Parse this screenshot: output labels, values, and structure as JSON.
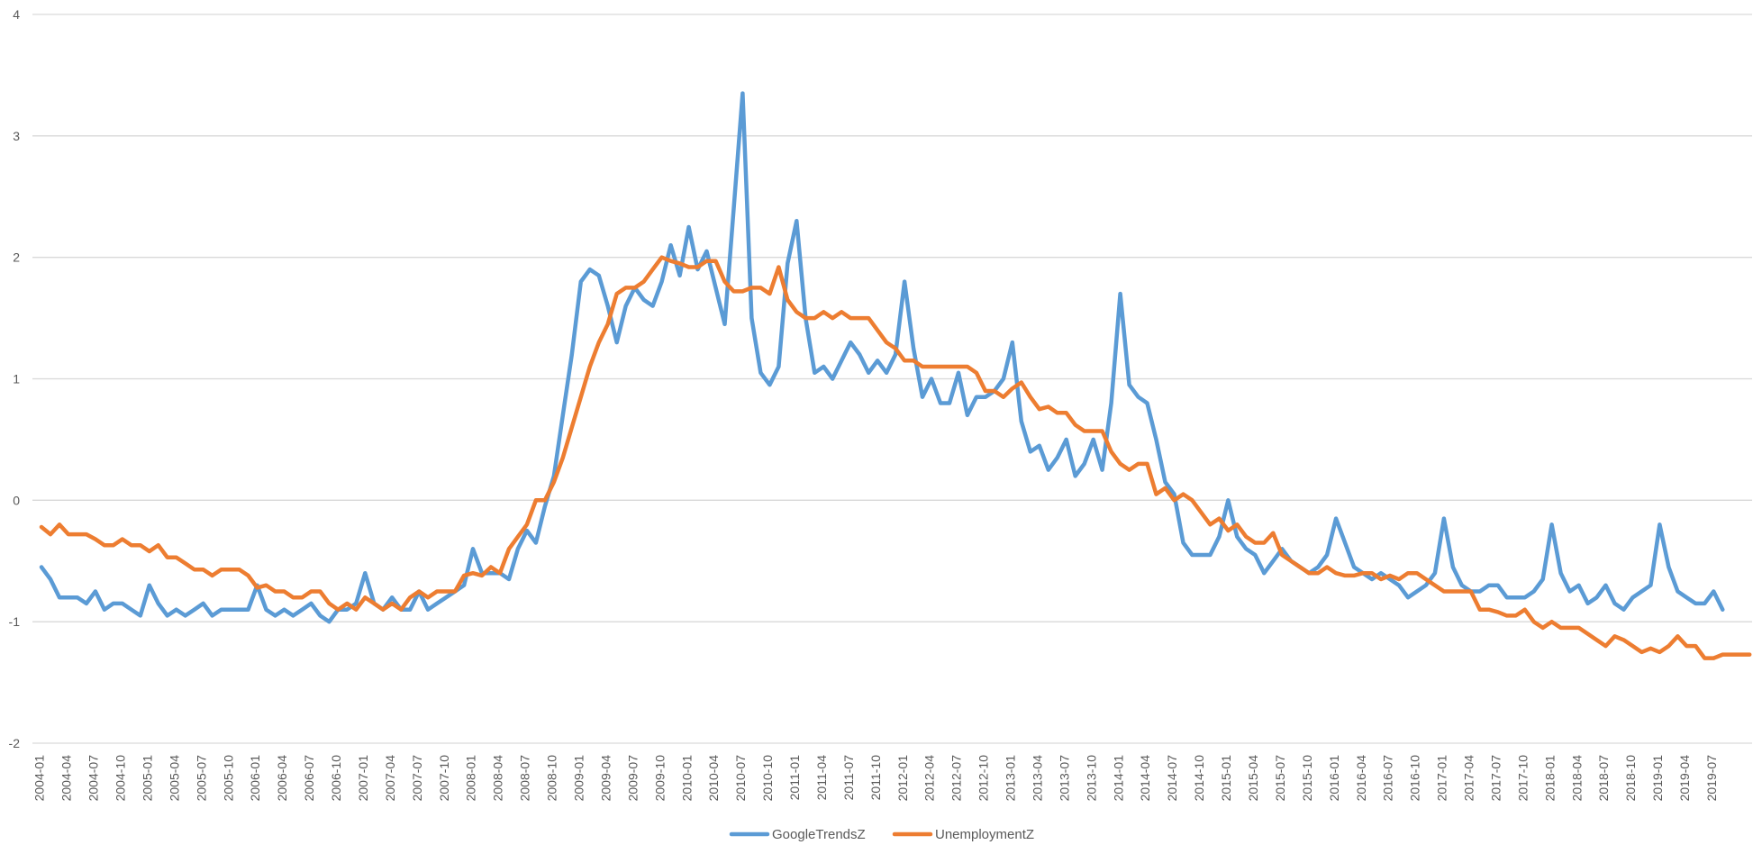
{
  "chart_data": {
    "type": "line",
    "title": "",
    "xlabel": "",
    "ylabel": "",
    "ylim": [
      -2,
      4
    ],
    "yticks": [
      -2,
      -1,
      0,
      1,
      2,
      3,
      4
    ],
    "grid": true,
    "legend_position": "bottom",
    "x_start": "2004-01",
    "x_end": "2019-09",
    "x_frequency": "monthly",
    "x_tick_labels": [
      "2004-01",
      "2004-04",
      "2004-07",
      "2004-10",
      "2005-01",
      "2005-04",
      "2005-07",
      "2005-10",
      "2006-01",
      "2006-04",
      "2006-07",
      "2006-10",
      "2007-01",
      "2007-04",
      "2007-07",
      "2007-10",
      "2008-01",
      "2008-04",
      "2008-07",
      "2008-10",
      "2009-01",
      "2009-04",
      "2009-07",
      "2009-10",
      "2010-01",
      "2010-04",
      "2010-07",
      "2010-10",
      "2011-01",
      "2011-04",
      "2011-07",
      "2011-10",
      "2012-01",
      "2012-04",
      "2012-07",
      "2012-10",
      "2013-01",
      "2013-04",
      "2013-07",
      "2013-10",
      "2014-01",
      "2014-04",
      "2014-07",
      "2014-10",
      "2015-01",
      "2015-04",
      "2015-07",
      "2015-10",
      "2016-01",
      "2016-04",
      "2016-07",
      "2016-10",
      "2017-01",
      "2017-04",
      "2017-07",
      "2017-10",
      "2018-01",
      "2018-04",
      "2018-07",
      "2018-10",
      "2019-01",
      "2019-04",
      "2019-07"
    ],
    "series": [
      {
        "name": "GoogleTrendsZ",
        "color": "#5b9bd5",
        "values": [
          -0.55,
          -0.65,
          -0.8,
          -0.8,
          -0.8,
          -0.85,
          -0.75,
          -0.9,
          -0.85,
          -0.85,
          -0.9,
          -0.95,
          -0.7,
          -0.85,
          -0.95,
          -0.9,
          -0.95,
          -0.9,
          -0.85,
          -0.95,
          -0.9,
          -0.9,
          -0.9,
          -0.9,
          -0.7,
          -0.9,
          -0.95,
          -0.9,
          -0.95,
          -0.9,
          -0.85,
          -0.95,
          -1.0,
          -0.9,
          -0.9,
          -0.85,
          -0.6,
          -0.85,
          -0.9,
          -0.8,
          -0.9,
          -0.9,
          -0.75,
          -0.9,
          -0.85,
          -0.8,
          -0.75,
          -0.7,
          -0.4,
          -0.6,
          -0.6,
          -0.6,
          -0.65,
          -0.4,
          -0.25,
          -0.35,
          -0.05,
          0.2,
          0.7,
          1.2,
          1.8,
          1.9,
          1.85,
          1.6,
          1.3,
          1.6,
          1.75,
          1.65,
          1.6,
          1.8,
          2.1,
          1.85,
          2.25,
          1.9,
          2.05,
          1.75,
          1.45,
          2.4,
          3.35,
          1.5,
          1.05,
          0.95,
          1.1,
          1.95,
          2.3,
          1.5,
          1.05,
          1.1,
          1.0,
          1.15,
          1.3,
          1.2,
          1.05,
          1.15,
          1.05,
          1.2,
          1.8,
          1.25,
          0.85,
          1.0,
          0.8,
          0.8,
          1.05,
          0.7,
          0.85,
          0.85,
          0.9,
          1.0,
          1.3,
          0.65,
          0.4,
          0.45,
          0.25,
          0.35,
          0.5,
          0.2,
          0.3,
          0.5,
          0.25,
          0.8,
          1.7,
          0.95,
          0.85,
          0.8,
          0.5,
          0.15,
          0.05,
          -0.35,
          -0.45,
          -0.45,
          -0.45,
          -0.3,
          0.0,
          -0.3,
          -0.4,
          -0.45,
          -0.6,
          -0.5,
          -0.4,
          -0.5,
          -0.55,
          -0.6,
          -0.55,
          -0.45,
          -0.15,
          -0.35,
          -0.55,
          -0.6,
          -0.65,
          -0.6,
          -0.65,
          -0.7,
          -0.8,
          -0.75,
          -0.7,
          -0.6,
          -0.15,
          -0.55,
          -0.7,
          -0.75,
          -0.75,
          -0.7,
          -0.7,
          -0.8,
          -0.8,
          -0.8,
          -0.75,
          -0.65,
          -0.2,
          -0.6,
          -0.75,
          -0.7,
          -0.85,
          -0.8,
          -0.7,
          -0.85,
          -0.9,
          -0.8,
          -0.75,
          -0.7,
          -0.2,
          -0.55,
          -0.75,
          -0.8,
          -0.85,
          -0.85,
          -0.75,
          -0.9
        ]
      },
      {
        "name": "UnemploymentZ",
        "color": "#ed7d31",
        "values": [
          -0.22,
          -0.28,
          -0.2,
          -0.28,
          -0.28,
          -0.28,
          -0.32,
          -0.37,
          -0.37,
          -0.32,
          -0.37,
          -0.37,
          -0.42,
          -0.37,
          -0.47,
          -0.47,
          -0.52,
          -0.57,
          -0.57,
          -0.62,
          -0.57,
          -0.57,
          -0.57,
          -0.62,
          -0.72,
          -0.7,
          -0.75,
          -0.75,
          -0.8,
          -0.8,
          -0.75,
          -0.75,
          -0.85,
          -0.9,
          -0.85,
          -0.9,
          -0.8,
          -0.85,
          -0.9,
          -0.85,
          -0.9,
          -0.8,
          -0.75,
          -0.8,
          -0.75,
          -0.75,
          -0.75,
          -0.62,
          -0.6,
          -0.62,
          -0.55,
          -0.6,
          -0.4,
          -0.3,
          -0.2,
          0.0,
          0.0,
          0.15,
          0.35,
          0.6,
          0.85,
          1.1,
          1.3,
          1.45,
          1.7,
          1.75,
          1.75,
          1.8,
          1.9,
          2.0,
          1.97,
          1.95,
          1.92,
          1.92,
          1.97,
          1.97,
          1.8,
          1.72,
          1.72,
          1.75,
          1.75,
          1.7,
          1.92,
          1.65,
          1.55,
          1.5,
          1.5,
          1.55,
          1.5,
          1.55,
          1.5,
          1.5,
          1.5,
          1.4,
          1.3,
          1.25,
          1.15,
          1.15,
          1.1,
          1.1,
          1.1,
          1.1,
          1.1,
          1.1,
          1.05,
          0.9,
          0.9,
          0.85,
          0.92,
          0.97,
          0.85,
          0.75,
          0.77,
          0.72,
          0.72,
          0.62,
          0.57,
          0.57,
          0.57,
          0.4,
          0.3,
          0.25,
          0.3,
          0.3,
          0.05,
          0.1,
          0.0,
          0.05,
          0.0,
          -0.1,
          -0.2,
          -0.15,
          -0.25,
          -0.2,
          -0.3,
          -0.35,
          -0.35,
          -0.27,
          -0.45,
          -0.5,
          -0.55,
          -0.6,
          -0.6,
          -0.55,
          -0.6,
          -0.62,
          -0.62,
          -0.6,
          -0.6,
          -0.65,
          -0.62,
          -0.65,
          -0.6,
          -0.6,
          -0.65,
          -0.7,
          -0.75,
          -0.75,
          -0.75,
          -0.75,
          -0.9,
          -0.9,
          -0.92,
          -0.95,
          -0.95,
          -0.9,
          -1.0,
          -1.05,
          -1.0,
          -1.05,
          -1.05,
          -1.05,
          -1.1,
          -1.15,
          -1.2,
          -1.12,
          -1.15,
          -1.2,
          -1.25,
          -1.22,
          -1.25,
          -1.2,
          -1.12,
          -1.2,
          -1.2,
          -1.3,
          -1.3,
          -1.27,
          -1.27,
          -1.27,
          -1.27
        ]
      }
    ]
  }
}
